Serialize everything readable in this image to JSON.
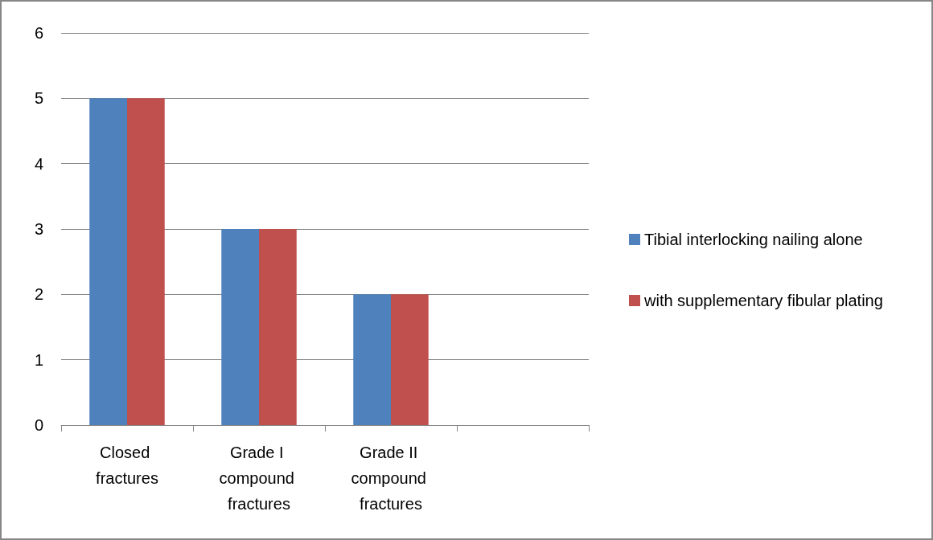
{
  "chart_data": {
    "type": "bar",
    "categories": [
      "Closed fractures",
      "Grade I compound fractures",
      "Grade II compound fractures",
      null
    ],
    "series": [
      {
        "name": "Tibial interlocking nailing alone",
        "color": "#4f81bd",
        "values": [
          5,
          3,
          2,
          null
        ]
      },
      {
        "name": "with supplementary fibular plating",
        "color": "#c0504d",
        "values": [
          5,
          3,
          2,
          null
        ]
      }
    ],
    "ylim": [
      0,
      6
    ],
    "yticks": [
      0,
      1,
      2,
      3,
      4,
      5,
      6
    ],
    "grid": "y",
    "legend": "right"
  }
}
